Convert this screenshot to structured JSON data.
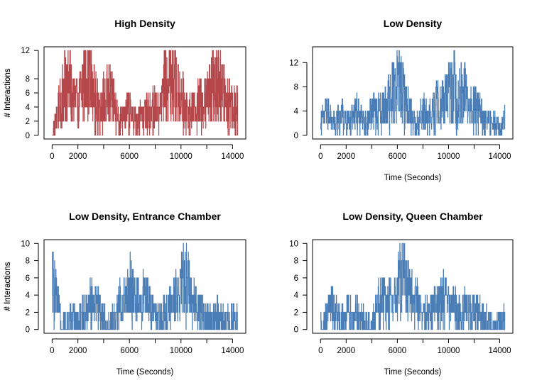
{
  "chart_data": [
    {
      "type": "line",
      "title": "High Density",
      "xlabel": "",
      "ylabel": "# Interactions",
      "xlim": [
        0,
        14400
      ],
      "ylim": [
        0,
        12
      ],
      "x_ticks": [
        0,
        2000,
        6000,
        10000,
        14000
      ],
      "y_ticks": [
        0,
        2,
        4,
        6,
        8,
        12
      ],
      "color": "#b5474b",
      "series": [
        {
          "x": [
            0,
            400,
            800,
            1200,
            1600,
            2000,
            2400,
            2800,
            3200,
            3600,
            4000,
            4400,
            4800,
            5200,
            5600,
            6000,
            6400,
            6800,
            7200,
            7600,
            8000,
            8400,
            8800,
            9200,
            9600,
            10000,
            10400,
            10800,
            11200,
            11600,
            12000,
            12400,
            12800,
            13200,
            13600,
            14000,
            14400
          ],
          "values": [
            0,
            3,
            6,
            8,
            6,
            4,
            8,
            10,
            6,
            4,
            5,
            6,
            5,
            2,
            3,
            4,
            2,
            3,
            3,
            4,
            4,
            4,
            8,
            9,
            7,
            6,
            4,
            3,
            4,
            5,
            5,
            8,
            9,
            6,
            5,
            5,
            4
          ]
        }
      ]
    },
    {
      "type": "line",
      "title": "Low Density",
      "xlabel": "Time (Seconds)",
      "ylabel": "# Interactions",
      "xlim": [
        0,
        14400
      ],
      "ylim": [
        0,
        14
      ],
      "x_ticks": [
        0,
        2000,
        6000,
        10000,
        14000
      ],
      "y_ticks": [
        0,
        4,
        8,
        12
      ],
      "color": "#4a7db5",
      "series": [
        {
          "x": [
            0,
            400,
            800,
            1200,
            1600,
            2000,
            2400,
            2800,
            3200,
            3600,
            4000,
            4400,
            4800,
            5200,
            5600,
            6000,
            6400,
            6800,
            7200,
            7600,
            8000,
            8400,
            8800,
            9200,
            9600,
            10000,
            10400,
            10800,
            11200,
            11600,
            12000,
            12400,
            12800,
            13200,
            13600,
            14000,
            14400
          ],
          "values": [
            2,
            4,
            3,
            2,
            4,
            2,
            3,
            4,
            3,
            2,
            4,
            4,
            4,
            5,
            8,
            10,
            7,
            5,
            3,
            2,
            4,
            3,
            4,
            6,
            5,
            7,
            8,
            6,
            8,
            4,
            5,
            4,
            3,
            2,
            2,
            1,
            3
          ]
        }
      ]
    },
    {
      "type": "line",
      "title": "Low Density, Entrance Chamber",
      "xlabel": "Time (Seconds)",
      "ylabel": "# Interactions",
      "xlim": [
        0,
        14400
      ],
      "ylim": [
        0,
        10
      ],
      "x_ticks": [
        0,
        2000,
        6000,
        10000,
        14000
      ],
      "y_ticks": [
        0,
        2,
        4,
        6,
        8,
        10
      ],
      "color": "#4a7db5",
      "series": [
        {
          "x": [
            0,
            400,
            800,
            1200,
            1600,
            2000,
            2400,
            2800,
            3200,
            3600,
            4000,
            4400,
            4800,
            5200,
            5600,
            6000,
            6400,
            6800,
            7200,
            7600,
            8000,
            8400,
            8800,
            9200,
            9600,
            10000,
            10400,
            10800,
            11200,
            11600,
            12000,
            12400,
            12800,
            13200,
            13600,
            14000,
            14400
          ],
          "values": [
            6,
            3,
            1,
            0,
            2,
            1,
            2,
            3,
            4,
            3,
            1,
            0,
            1,
            3,
            4,
            5,
            4,
            3,
            4,
            3,
            2,
            1,
            2,
            3,
            4,
            5,
            6,
            4,
            3,
            2,
            1,
            1,
            2,
            1,
            1,
            1,
            1
          ]
        }
      ]
    },
    {
      "type": "line",
      "title": "Low Density, Queen Chamber",
      "xlabel": "Time (Seconds)",
      "ylabel": "# Interactions",
      "xlim": [
        0,
        14400
      ],
      "ylim": [
        0,
        10
      ],
      "x_ticks": [
        0,
        2000,
        6000,
        10000,
        14000
      ],
      "y_ticks": [
        0,
        2,
        4,
        6,
        8,
        10
      ],
      "color": "#4a7db5",
      "series": [
        {
          "x": [
            0,
            400,
            800,
            1200,
            1600,
            2000,
            2400,
            2800,
            3200,
            3600,
            4000,
            4400,
            4800,
            5200,
            5600,
            6000,
            6400,
            6800,
            7200,
            7600,
            8000,
            8400,
            8800,
            9200,
            9600,
            10000,
            10400,
            10800,
            11200,
            11600,
            12000,
            12400,
            12800,
            13200,
            13600,
            14000,
            14400
          ],
          "values": [
            0,
            1,
            3,
            2,
            1,
            2,
            2,
            2,
            1,
            0,
            0,
            3,
            4,
            3,
            4,
            5,
            7,
            5,
            4,
            3,
            2,
            2,
            3,
            3,
            4,
            3,
            3,
            2,
            3,
            2,
            2,
            2,
            1,
            1,
            1,
            1,
            1
          ]
        }
      ]
    }
  ]
}
